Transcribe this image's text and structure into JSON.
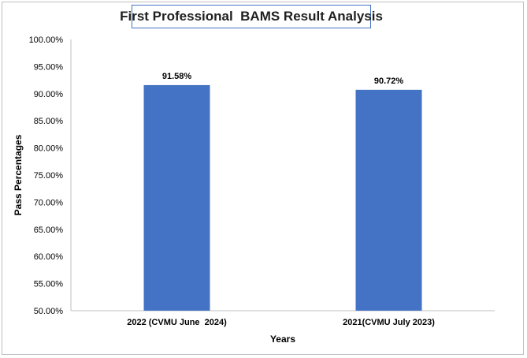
{
  "chart_data": {
    "type": "bar",
    "title": "First Professional  BAMS Result Analysis",
    "xlabel": "Years",
    "ylabel": "Pass Percentages",
    "categories": [
      "2022 (CVMU June  2024)",
      "2021(CVMU July 2023)"
    ],
    "values": [
      91.58,
      90.72
    ],
    "data_labels": [
      "91.58%",
      "90.72%"
    ],
    "ylim": [
      50,
      100
    ],
    "yticks": [
      "50.00%",
      "55.00%",
      "60.00%",
      "65.00%",
      "70.00%",
      "75.00%",
      "80.00%",
      "85.00%",
      "90.00%",
      "95.00%",
      "100.00%"
    ],
    "bar_color": "#4472c4",
    "title_border_color": "#4472c4",
    "grid": false
  }
}
